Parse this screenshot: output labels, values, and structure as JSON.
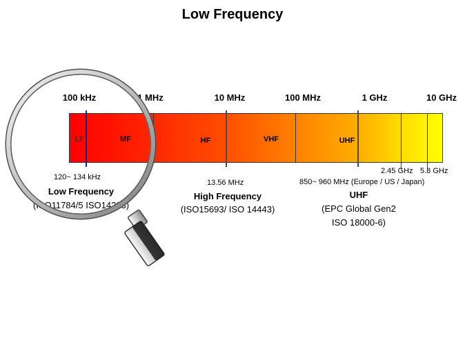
{
  "title": "Low Frequency",
  "scale": [
    "100 kHz",
    "1 MHz",
    "10 MHz",
    "100 MHz",
    "1 GHz",
    "10 GHz"
  ],
  "bands": [
    "LF",
    "MF",
    "HF",
    "VHF",
    "UHF"
  ],
  "markers": {
    "lf": "120~ 134 kHz",
    "hf": "13.56 MHz",
    "uhf": "850~ 960 MHz (Europe / US / Japan)",
    "ghz_245": "2.45 GHz",
    "ghz_58": "5.8 GHz"
  },
  "labels": {
    "lf_title": "Low Frequency",
    "lf_std": "(ISO11784/5 ISO14223)",
    "hf_title": "High Frequency",
    "hf_std": "(ISO15693/ ISO 14443)",
    "uhf_title": "UHF",
    "uhf_std1": "(EPC Global Gen2",
    "uhf_std2": "ISO 18000-6)"
  },
  "colors": {
    "gradient_start": "#ff0000",
    "gradient_end": "#ffff00",
    "lf_marker": "#1a237e",
    "other_markers": "#4a4a4a"
  }
}
